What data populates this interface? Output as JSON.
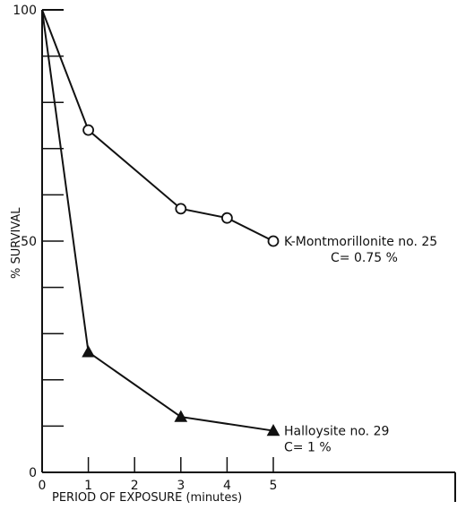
{
  "chart_data": {
    "type": "line",
    "xlabel": "PERIOD OF EXPOSURE (minutes)",
    "ylabel": "% SURVIVAL",
    "xlim": [
      0,
      9
    ],
    "ylim": [
      0,
      100
    ],
    "x_ticks": [
      0,
      1,
      2,
      3,
      4,
      5
    ],
    "x_tick_labels": [
      "0",
      "1",
      "2",
      "3",
      "4",
      "5"
    ],
    "y_ticks": [
      0,
      10,
      20,
      30,
      40,
      50,
      60,
      70,
      80,
      90,
      100
    ],
    "y_tick_labels": [
      {
        "value": 0,
        "label": "0"
      },
      {
        "value": 50,
        "label": "50"
      },
      {
        "value": 100,
        "label": "100"
      }
    ],
    "grid": false,
    "series": [
      {
        "name": "K-Montmorillonite no. 25",
        "annotation_line1": "K-Montmorillonite no. 25",
        "annotation_line2": "C= 0.75 %",
        "marker": "open-circle",
        "color": "#111111",
        "x": [
          0,
          1,
          3,
          4,
          5
        ],
        "y": [
          100,
          74,
          57,
          55,
          50
        ]
      },
      {
        "name": "Halloysite no. 29",
        "annotation_line1": "Halloysite no. 29",
        "annotation_line2": "C= 1 %",
        "marker": "filled-triangle",
        "color": "#111111",
        "x": [
          0,
          1,
          3,
          5
        ],
        "y": [
          100,
          26,
          12,
          9
        ]
      }
    ]
  }
}
